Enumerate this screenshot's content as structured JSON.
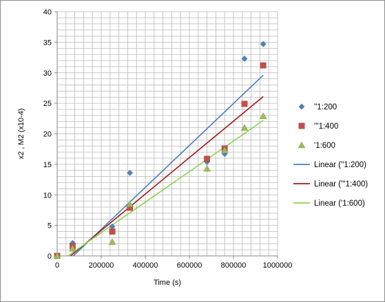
{
  "chart_data": {
    "type": "scatter",
    "xlabel": "Time (s)",
    "ylabel": "x2 , M2 (x10-4)",
    "xlim": [
      0,
      1000000
    ],
    "ylim": [
      0,
      40
    ],
    "x_tick_labels": [
      "0",
      "200000",
      "400000",
      "600000",
      "800000",
      "1000000"
    ],
    "x_ticks": [
      0,
      200000,
      400000,
      600000,
      800000,
      1000000
    ],
    "y_tick_labels": [
      "0",
      "5",
      "10",
      "15",
      "20",
      "25",
      "30",
      "35",
      "40"
    ],
    "y_ticks": [
      0,
      5,
      10,
      15,
      20,
      25,
      30,
      35,
      40
    ],
    "grid": true,
    "legend_position": "right",
    "series": [
      {
        "name": "''1:200",
        "marker": "diamond",
        "color": "#4F81BD",
        "points": [
          [
            0,
            0
          ],
          [
            70000,
            2.1
          ],
          [
            250000,
            4.8
          ],
          [
            330000,
            13.6
          ],
          [
            680000,
            15.4
          ],
          [
            760000,
            16.7
          ],
          [
            850000,
            32.3
          ],
          [
            935000,
            34.7
          ]
        ]
      },
      {
        "name": "'''1:400",
        "marker": "square",
        "color": "#C0504D",
        "points": [
          [
            0,
            0
          ],
          [
            70000,
            1.6
          ],
          [
            250000,
            4.0
          ],
          [
            330000,
            7.9
          ],
          [
            680000,
            15.9
          ],
          [
            760000,
            17.6
          ],
          [
            850000,
            24.9
          ],
          [
            935000,
            31.2
          ]
        ]
      },
      {
        "name": "'1:600",
        "marker": "triangle",
        "color": "#9BBB59",
        "points": [
          [
            0,
            0
          ],
          [
            70000,
            1.2
          ],
          [
            250000,
            2.3
          ],
          [
            330000,
            8.5
          ],
          [
            680000,
            14.3
          ],
          [
            760000,
            17.3
          ],
          [
            850000,
            21.0
          ],
          [
            935000,
            22.9
          ]
        ]
      }
    ],
    "trendlines": [
      {
        "name": "Linear (''1:200)",
        "color": "#4A7EBB",
        "from": [
          0,
          -2.5
        ],
        "to": [
          935000,
          29.6
        ]
      },
      {
        "name": "Linear ('''1:400)",
        "color": "#A3191A",
        "from": [
          0,
          -1.8
        ],
        "to": [
          935000,
          26.1
        ]
      },
      {
        "name": "Linear ('1:600)",
        "color": "#92D050",
        "from": [
          0,
          -1.2
        ],
        "to": [
          935000,
          22.2
        ]
      }
    ]
  }
}
